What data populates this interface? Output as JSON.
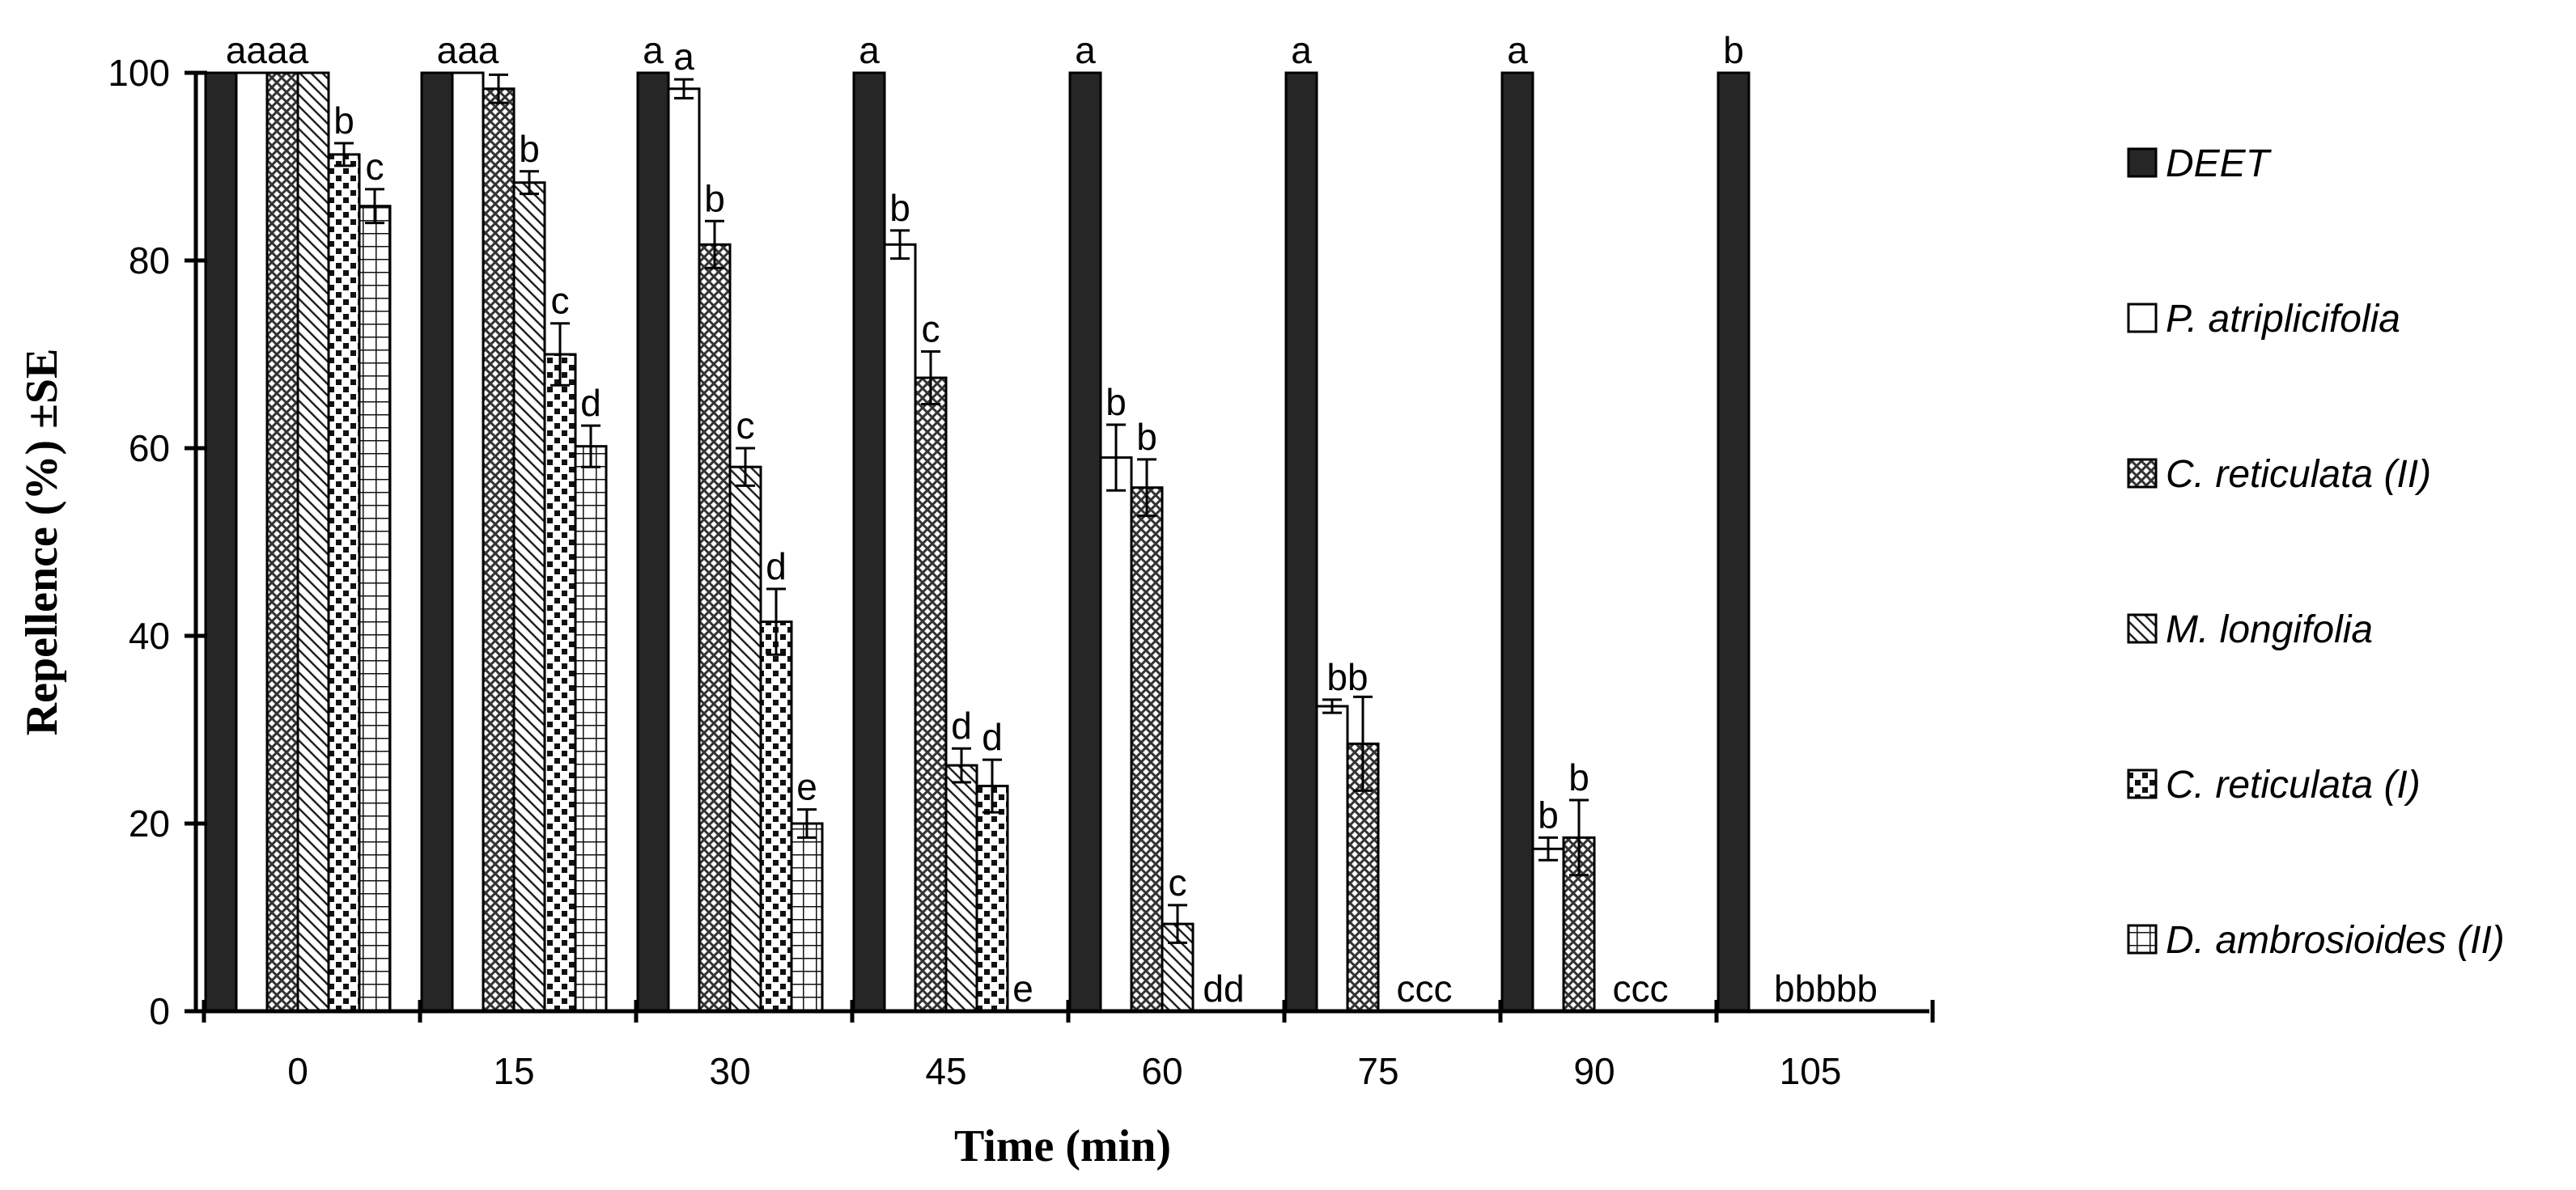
{
  "chart_data": {
    "type": "bar",
    "title": "",
    "xlabel": "Time (min)",
    "ylabel": "Repellence (%) ±SE",
    "ylim": [
      0,
      100
    ],
    "yticks": [
      0,
      20,
      40,
      60,
      80,
      100
    ],
    "categories": [
      "0",
      "15",
      "30",
      "45",
      "60",
      "75",
      "90",
      "105"
    ],
    "series": [
      {
        "name": "DEET",
        "pattern": "solid",
        "values": [
          100,
          100,
          100,
          100,
          100,
          100,
          100,
          100
        ],
        "errors": [
          0,
          0,
          0,
          0,
          0,
          0,
          0,
          0
        ],
        "letters": [
          "a",
          "a",
          "a",
          "a",
          "a",
          "a",
          "a",
          "b"
        ]
      },
      {
        "name": "P. atriplicifolia",
        "pattern": "white",
        "values": [
          100,
          100,
          98.3,
          81.7,
          59,
          32.5,
          17.3,
          0
        ],
        "errors": [
          0,
          0,
          1,
          1.5,
          3.5,
          0.7,
          1.2,
          0
        ],
        "letters": [
          "a",
          "a",
          "a",
          "b",
          "b",
          "b",
          "b",
          "b"
        ]
      },
      {
        "name": "C. reticulata (II)",
        "pattern": "crosshatch",
        "values": [
          100,
          98.3,
          81.7,
          67.5,
          55.8,
          28.5,
          18.5,
          0
        ],
        "errors": [
          0,
          1.5,
          2.5,
          2.8,
          3,
          5,
          4,
          0
        ],
        "letters": [
          "a",
          "a",
          "b",
          "c",
          "b",
          "b",
          "b",
          "b"
        ]
      },
      {
        "name": "M. longifolia",
        "pattern": "diagonal",
        "values": [
          100,
          88.3,
          58,
          26.2,
          9.3,
          0,
          0,
          0
        ],
        "errors": [
          0,
          1.2,
          2,
          1.8,
          2,
          0,
          0,
          0
        ],
        "letters": [
          "a",
          "b",
          "c",
          "d",
          "c",
          "c",
          "c",
          "b"
        ]
      },
      {
        "name": "C. reticulata (I)",
        "pattern": "dots",
        "values": [
          91.3,
          70,
          41.5,
          24,
          0,
          0,
          0,
          0
        ],
        "errors": [
          1.2,
          3.3,
          3.5,
          2.8,
          0,
          0,
          0,
          0
        ],
        "letters": [
          "b",
          "c",
          "d",
          "d",
          "d",
          "c",
          "c",
          "b"
        ]
      },
      {
        "name": "D. ambrosioides (II)",
        "pattern": "grid",
        "values": [
          85.8,
          60.2,
          20,
          0,
          0,
          0,
          0,
          0
        ],
        "errors": [
          1.8,
          2.2,
          1.5,
          0,
          0,
          0,
          0,
          0
        ],
        "letters": [
          "c",
          "d",
          "e",
          "e",
          "d",
          "c",
          "c",
          "b"
        ]
      }
    ],
    "legend_position": "right",
    "grid": false
  }
}
